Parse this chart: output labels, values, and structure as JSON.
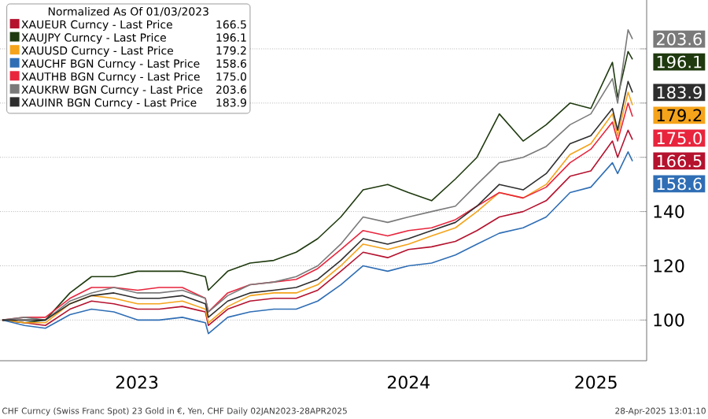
{
  "chart_data": {
    "type": "line",
    "legend_title": "Normalized As Of 01/03/2023",
    "x": [
      "2023-01-02",
      "2023-02-01",
      "2023-03-01",
      "2023-04-03",
      "2023-05-02",
      "2023-06-01",
      "2023-07-03",
      "2023-08-01",
      "2023-09-01",
      "2023-10-02",
      "2023-10-06",
      "2023-11-01",
      "2023-12-01",
      "2024-01-02",
      "2024-02-01",
      "2024-03-01",
      "2024-04-01",
      "2024-05-01",
      "2024-06-03",
      "2024-07-01",
      "2024-08-01",
      "2024-09-02",
      "2024-10-01",
      "2024-10-31",
      "2024-12-02",
      "2025-01-02",
      "2025-02-03",
      "2025-03-03",
      "2025-04-01",
      "2025-04-08",
      "2025-04-22",
      "2025-04-28"
    ],
    "series": [
      {
        "name": "XAUEUR Curncy - Last Price",
        "color": "#b5122e",
        "values": [
          100,
          99,
          98,
          104,
          107,
          106,
          104,
          104,
          105,
          103,
          98,
          104,
          107,
          108,
          108,
          111,
          118,
          125,
          123,
          126,
          127,
          129,
          133,
          138,
          140,
          144,
          153,
          155,
          166,
          160,
          170,
          166.5
        ],
        "value_labels": [
          null,
          null,
          null,
          null,
          null,
          null,
          null,
          null,
          null,
          null,
          null,
          null,
          null,
          null,
          null,
          null,
          null,
          null,
          null,
          null,
          null,
          null,
          null,
          null,
          null,
          null,
          null,
          null,
          null,
          null,
          null,
          "166.5"
        ]
      },
      {
        "name": "XAUJPY Curncy - Last Price",
        "color": "#1f3a0f",
        "values": [
          100,
          99,
          100,
          110,
          116,
          116,
          118,
          118,
          118,
          116,
          111,
          118,
          121,
          122,
          125,
          130,
          138,
          148,
          150,
          147,
          144,
          152,
          160,
          176,
          166,
          172,
          180,
          178,
          195,
          182,
          199,
          196.1
        ],
        "value_labels": [
          null,
          null,
          null,
          null,
          null,
          null,
          null,
          null,
          null,
          null,
          null,
          null,
          null,
          null,
          null,
          null,
          null,
          null,
          null,
          null,
          null,
          null,
          null,
          null,
          null,
          null,
          null,
          null,
          null,
          null,
          null,
          "196.1"
        ]
      },
      {
        "name": "XAUUSD Curncy - Last Price",
        "color": "#f5a31a",
        "values": [
          100,
          99,
          99,
          106,
          109,
          108,
          106,
          106,
          107,
          104,
          99,
          105,
          109,
          110,
          110,
          113,
          120,
          128,
          126,
          128,
          131,
          134,
          140,
          147,
          145,
          150,
          161,
          165,
          176,
          168,
          184,
          179.2
        ],
        "value_labels": [
          null,
          null,
          null,
          null,
          null,
          null,
          null,
          null,
          null,
          null,
          null,
          null,
          null,
          null,
          null,
          null,
          null,
          null,
          null,
          null,
          null,
          null,
          null,
          null,
          null,
          null,
          null,
          null,
          null,
          null,
          null,
          "179.2"
        ]
      },
      {
        "name": "XAUCHF BGN Curncy - Last Price",
        "color": "#2f6eb5",
        "values": [
          100,
          98,
          97,
          102,
          104,
          103,
          100,
          100,
          101,
          99,
          95,
          101,
          103,
          104,
          104,
          107,
          113,
          120,
          118,
          120,
          121,
          124,
          128,
          132,
          134,
          138,
          147,
          149,
          158,
          154,
          162,
          158.6
        ],
        "value_labels": [
          null,
          null,
          null,
          null,
          null,
          null,
          null,
          null,
          null,
          null,
          null,
          null,
          null,
          null,
          null,
          null,
          null,
          null,
          null,
          null,
          null,
          null,
          null,
          null,
          null,
          null,
          null,
          null,
          null,
          null,
          null,
          "158.6"
        ]
      },
      {
        "name": "XAUTHB BGN Curncy - Last Price",
        "color": "#e8253d",
        "values": [
          100,
          101,
          101,
          108,
          112,
          112,
          111,
          112,
          112,
          108,
          103,
          110,
          113,
          114,
          115,
          119,
          126,
          133,
          131,
          133,
          134,
          137,
          142,
          147,
          145,
          149,
          158,
          163,
          173,
          166,
          180,
          175.0
        ],
        "value_labels": [
          null,
          null,
          null,
          null,
          null,
          null,
          null,
          null,
          null,
          null,
          null,
          null,
          null,
          null,
          null,
          null,
          null,
          null,
          null,
          null,
          null,
          null,
          null,
          null,
          null,
          null,
          null,
          null,
          null,
          null,
          null,
          "175.0"
        ]
      },
      {
        "name": "XAUKRW BGN Curncy - Last Price",
        "color": "#7a7a7a",
        "values": [
          100,
          101,
          100,
          107,
          110,
          112,
          110,
          110,
          111,
          108,
          103,
          109,
          113,
          114,
          116,
          120,
          128,
          138,
          136,
          138,
          140,
          142,
          150,
          158,
          160,
          164,
          172,
          176,
          189,
          180,
          207,
          203.6
        ],
        "value_labels": [
          null,
          null,
          null,
          null,
          null,
          null,
          null,
          null,
          null,
          null,
          null,
          null,
          null,
          null,
          null,
          null,
          null,
          null,
          null,
          null,
          null,
          null,
          null,
          null,
          null,
          null,
          null,
          null,
          null,
          null,
          null,
          "203.6"
        ]
      },
      {
        "name": "XAUINR BGN Curncy - Last Price",
        "color": "#2e2e2e",
        "values": [
          100,
          100,
          100,
          106,
          109,
          110,
          108,
          108,
          109,
          106,
          101,
          107,
          110,
          111,
          112,
          115,
          122,
          130,
          128,
          130,
          133,
          136,
          142,
          150,
          148,
          154,
          165,
          168,
          178,
          170,
          188,
          183.9
        ],
        "value_labels": [
          null,
          null,
          null,
          null,
          null,
          null,
          null,
          null,
          null,
          null,
          null,
          null,
          null,
          null,
          null,
          null,
          null,
          null,
          null,
          null,
          null,
          null,
          null,
          null,
          null,
          null,
          null,
          null,
          null,
          null,
          null,
          "183.9"
        ]
      }
    ],
    "xlim": [
      "2022-12-30",
      "2025-05-17"
    ],
    "xticks": [
      {
        "value": "2023-07-02",
        "label": "2023"
      },
      {
        "value": "2024-07-01",
        "label": "2024"
      },
      {
        "value": "2025-03-10",
        "label": "2025"
      }
    ],
    "ylim": [
      85,
      218
    ],
    "yticks": [
      100,
      120,
      140,
      {
        "value": 160,
        "label": null
      },
      {
        "value": 180,
        "label": null
      },
      {
        "value": 200,
        "label": null
      }
    ],
    "grid": "y",
    "legend": "top left",
    "marker": "none",
    "line_style": "solid",
    "annotations": [
      "CHF Curncy (Swiss Franc Spot) 23 Gold in €, Yen, CHF  Daily 02JAN2023-28APR2025",
      "28-Apr-2025 13:01:10"
    ]
  }
}
